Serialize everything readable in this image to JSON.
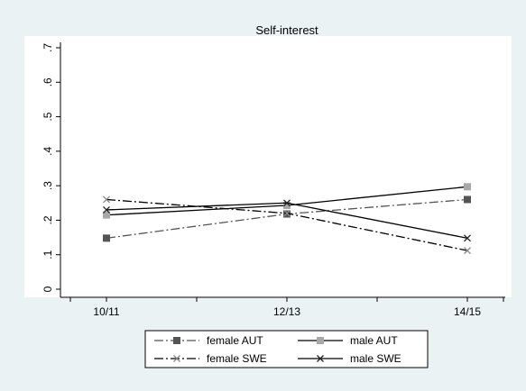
{
  "chart_data": {
    "type": "line",
    "title": "Self-interest",
    "xlabel": "",
    "ylabel": "",
    "categories": [
      "10/11",
      "12/13",
      "14/15"
    ],
    "ylim": [
      0,
      0.7
    ],
    "yticks": [
      0,
      0.1,
      0.2,
      0.3,
      0.4,
      0.5,
      0.6,
      0.7
    ],
    "ytick_labels": [
      "0",
      ".1",
      ".2",
      ".3",
      ".4",
      ".5",
      ".6",
      ".7"
    ],
    "grid": false,
    "legend_position": "bottom",
    "series": [
      {
        "name": "female AUT",
        "values": [
          0.148,
          0.218,
          0.26
        ],
        "color": "#555555",
        "dash": "dashdot",
        "marker": "square"
      },
      {
        "name": "male AUT",
        "values": [
          0.215,
          0.243,
          0.297
        ],
        "color": "#000000",
        "dash": "solid",
        "marker": "square-gray"
      },
      {
        "name": "female SWE",
        "values": [
          0.26,
          0.22,
          0.112
        ],
        "color": "#000000",
        "dash": "dashdot",
        "marker": "x-gray"
      },
      {
        "name": "male SWE",
        "values": [
          0.23,
          0.25,
          0.148
        ],
        "color": "#000000",
        "dash": "solid",
        "marker": "x"
      }
    ]
  }
}
